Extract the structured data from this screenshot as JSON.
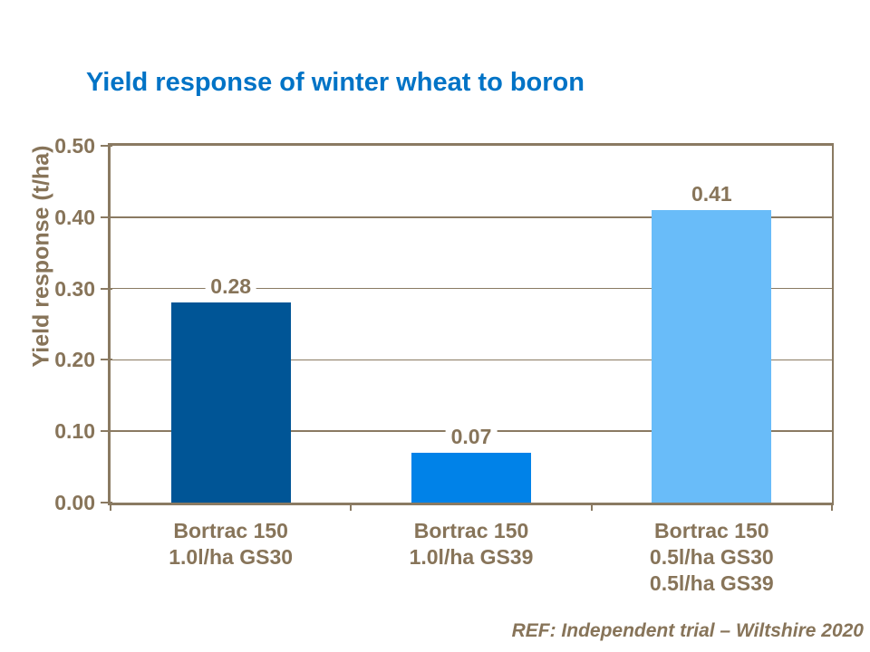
{
  "chart_data": {
    "type": "bar",
    "title": "Yield response of winter wheat to boron",
    "ylabel": "Yield response (t/ha)",
    "xlabel": "",
    "categories": [
      [
        "Bortrac 150",
        "1.0l/ha GS30"
      ],
      [
        "Bortrac 150",
        "1.0l/ha GS39"
      ],
      [
        "Bortrac 150",
        "0.5l/ha GS30",
        "0.5l/ha GS39"
      ]
    ],
    "values": [
      0.28,
      0.07,
      0.41
    ],
    "value_labels": [
      "0.28",
      "0.07",
      "0.41"
    ],
    "ytick_labels": [
      "0.00",
      "0.10",
      "0.20",
      "0.30",
      "0.40",
      "0.50"
    ],
    "ylim": [
      0,
      0.5
    ],
    "grid": true,
    "legend_position": "none",
    "bar_colors": [
      "#005596",
      "#0082E8",
      "#69BCF9"
    ],
    "colors": {
      "title": "#0073C6",
      "axis_text": "#877459",
      "axis_line": "#8A7A62",
      "background": "#FFFFFF"
    }
  },
  "footer": {
    "reference": "REF: Independent trial – Wiltshire 2020"
  }
}
